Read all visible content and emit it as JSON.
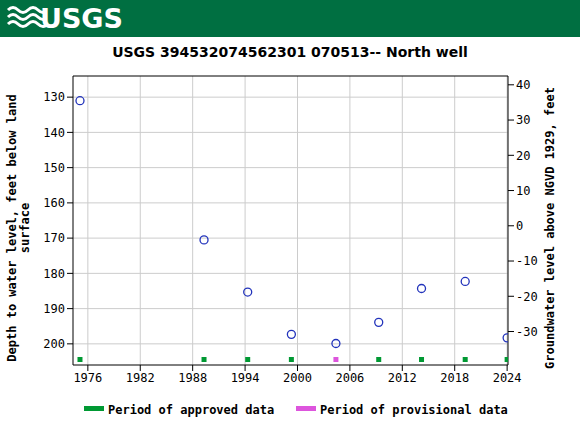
{
  "banner": "USGS",
  "chart_data": {
    "type": "scatter",
    "title": "USGS 394532074562301 070513-- North well",
    "y_label": "Depth to water level, feet below land surface",
    "y2_label": "Groundwater level above NGVD 1929, feet",
    "x": [
      1975.1,
      1989.3,
      1994.3,
      1999.3,
      2004.4,
      2009.3,
      2014.2,
      2019.2,
      2024.0
    ],
    "values": [
      131,
      170.5,
      185.3,
      197.3,
      199.9,
      193.9,
      184.3,
      182.3,
      198.3
    ],
    "color": "#2233bb",
    "marker": "open_circle",
    "xlim": [
      1974.3,
      2024.1
    ],
    "xticks": [
      1976,
      1982,
      1988,
      1994,
      2000,
      2006,
      2012,
      2018,
      2024
    ],
    "ylim": [
      124,
      206
    ],
    "yticks": [
      130,
      140,
      150,
      160,
      170,
      180,
      190,
      200
    ],
    "y2lim": [
      -39.5,
      42.5
    ],
    "y2ticks": [
      -30,
      -20,
      -10,
      0,
      10,
      20,
      30,
      40
    ],
    "grid": true,
    "periods": [
      {
        "name": "Period of approved data",
        "color": "#009933",
        "x": [
          1975.1,
          1989.3,
          1994.3,
          1999.3,
          2009.3,
          2014.2,
          2019.2,
          2024.0
        ]
      },
      {
        "name": "Period of provisional data",
        "color": "#dd55dd",
        "x": [
          2004.4
        ]
      }
    ]
  }
}
